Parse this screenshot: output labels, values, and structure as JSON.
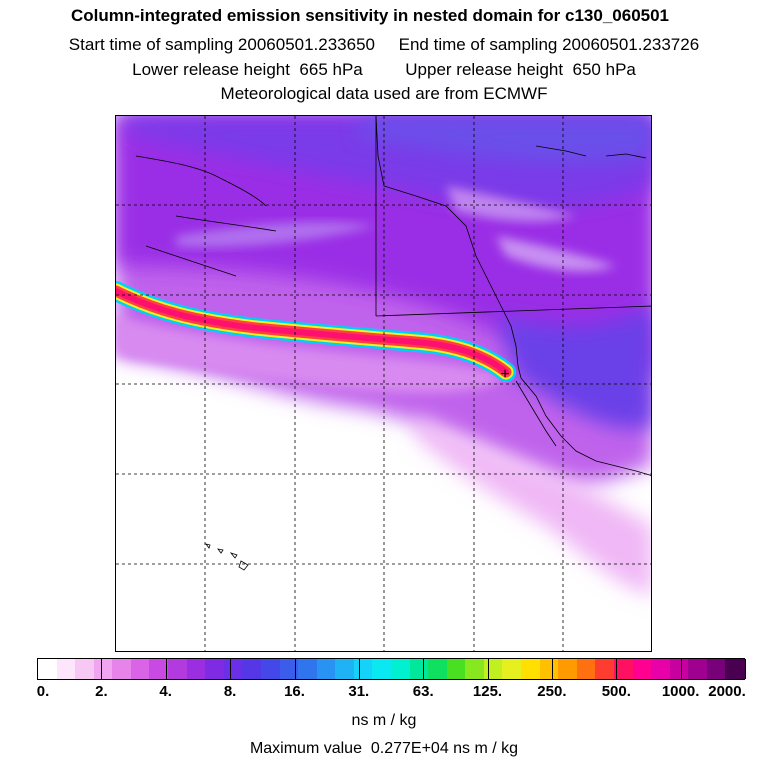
{
  "chart_data": {
    "type": "heatmap",
    "title": "Column-integrated emission sensitivity in nested domain for c130_060501",
    "subtitle_lines": [
      "Start time of sampling 20060501.233650     End time of sampling 20060501.233726",
      "Lower release height  665 hPa         Upper release height  650 hPa",
      "Meteorological data used are from ECMWF"
    ],
    "colorbar": {
      "tick_labels": [
        "0.",
        "2.",
        "4.",
        "8.",
        "16.",
        "31.",
        "63.",
        "125.",
        "250.",
        "500.",
        "1000.",
        "2000."
      ],
      "colors": [
        "#ffffff",
        "#fde6fb",
        "#f8c8f5",
        "#f1a4ef",
        "#e784ea",
        "#d964e6",
        "#c84ae2",
        "#b23adf",
        "#9a2ee0",
        "#7f2be3",
        "#6a2fe6",
        "#5637e8",
        "#4548e9",
        "#3a5deb",
        "#2f76ee",
        "#2893f2",
        "#1fb2f5",
        "#14d2f8",
        "#0ae8f2",
        "#00f0d0",
        "#00e89c",
        "#10e060",
        "#48e020",
        "#88e820",
        "#c0f020",
        "#e6f020",
        "#ffe000",
        "#ffc000",
        "#ff9a00",
        "#ff7010",
        "#ff3c30",
        "#ff1060",
        "#ff0090",
        "#e800a8",
        "#c800a0",
        "#a00090",
        "#780078",
        "#4a0050"
      ],
      "unit_label": "ns m / kg"
    },
    "max_value_text": "Maximum value  0.277E+04 ns m / kg",
    "release_point_marker": "+"
  }
}
